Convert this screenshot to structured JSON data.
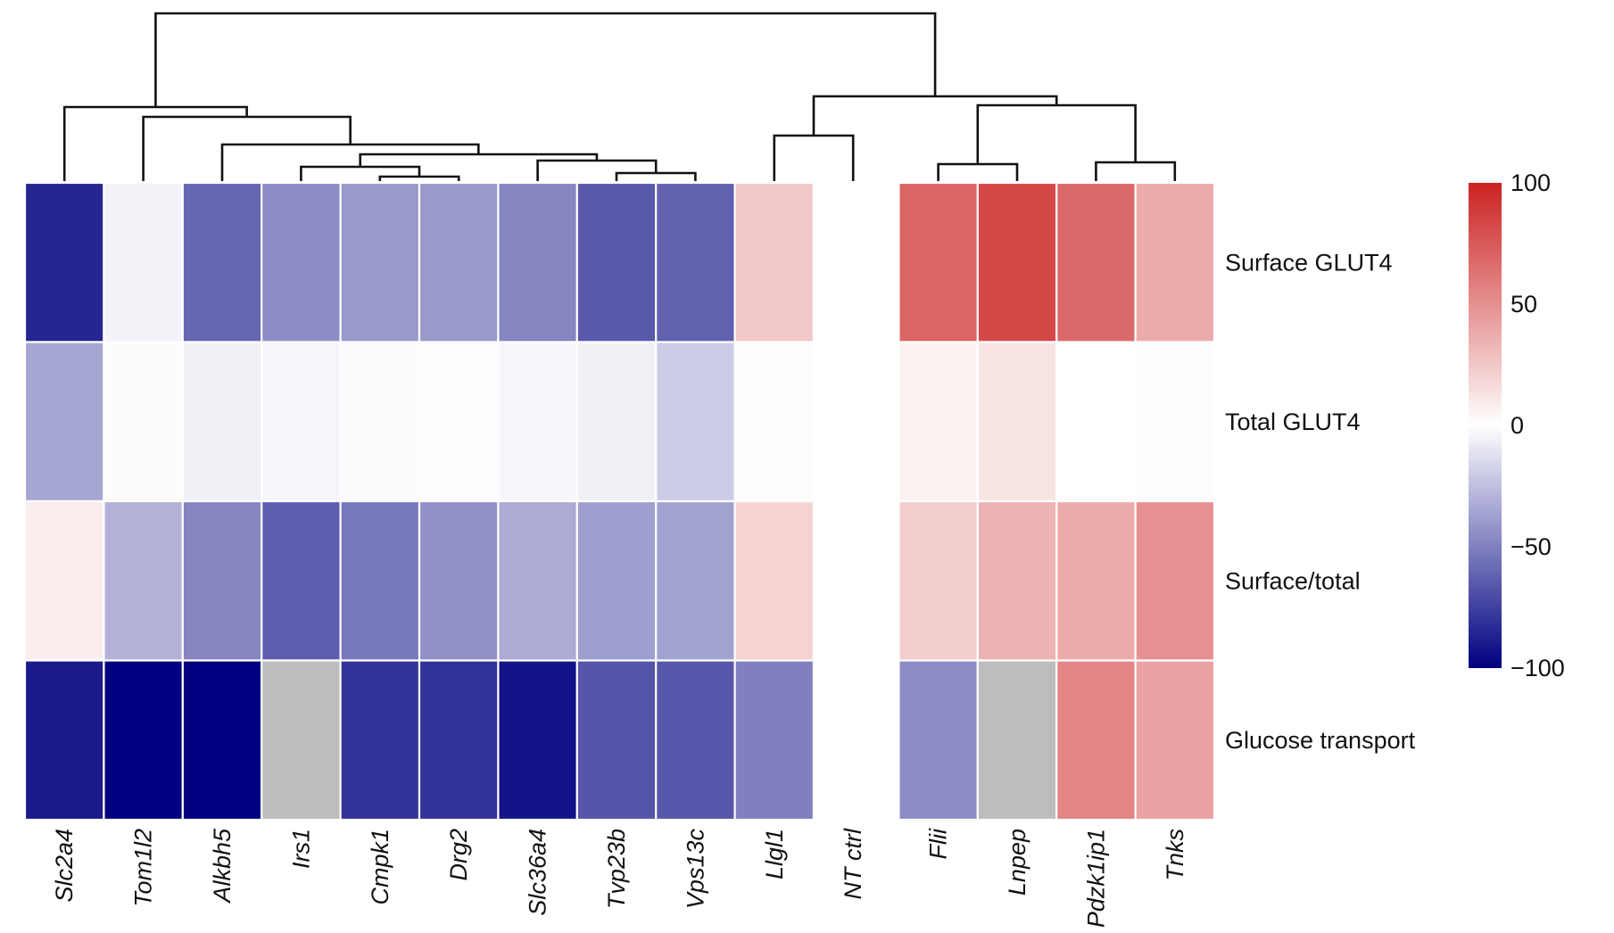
{
  "chart_data": {
    "type": "heatmap",
    "columns": [
      "Slc2a4",
      "Tom1l2",
      "Alkbh5",
      "Irs1",
      "Cmpk1",
      "Drg2",
      "Slc36a4",
      "Tvp23b",
      "Vps13c",
      "Llgl1",
      "NT ctrl",
      "Flii",
      "Lnpep",
      "Pdzk1ip1",
      "Tnks"
    ],
    "rows": [
      "Surface GLUT4",
      "Total GLUT4",
      "Surface/total",
      "Glucose transport"
    ],
    "values": [
      [
        -85,
        -5,
        -60,
        -45,
        -40,
        -40,
        -48,
        -65,
        -62,
        25,
        0,
        70,
        83,
        68,
        38
      ],
      [
        -35,
        2,
        -6,
        -4,
        -1,
        1,
        -3,
        -6,
        -20,
        1,
        0,
        6,
        12,
        0,
        1
      ],
      [
        8,
        -30,
        -48,
        -63,
        -53,
        -43,
        -33,
        -38,
        -36,
        20,
        0,
        22,
        35,
        38,
        50
      ],
      [
        -90,
        -100,
        -100,
        null,
        -80,
        -80,
        -92,
        -67,
        -66,
        -50,
        0,
        -45,
        null,
        55,
        42
      ]
    ],
    "missing_color": "#bdbdbd",
    "colorbar": {
      "min": -100,
      "max": 100,
      "ticks": [
        100,
        50,
        0,
        -50,
        -100
      ],
      "tick_labels": [
        "100",
        "50",
        "0",
        "−50",
        "−100"
      ],
      "colors": {
        "low": "#000080",
        "mid": "#ffffff",
        "high": "#cc2222"
      }
    },
    "gap_after_column": "NT ctrl",
    "column_dendrogram": {
      "merges": [
        [
          "Cmpk1",
          "Drg2"
        ],
        [
          "Irs1",
          "Cmpk1+Drg2"
        ],
        [
          "Tvp23b",
          "Vps13c"
        ],
        [
          "Slc36a4",
          "Tvp23b+Vps13c"
        ],
        [
          "Irs1+Cmpk1+Drg2",
          "Slc36a4+Tvp23b+Vps13c"
        ],
        [
          "Alkbh5",
          "Irs1..Vps13c"
        ],
        [
          "Tom1l2",
          "Alkbh5..Vps13c"
        ],
        [
          "Slc2a4",
          "Tom1l2..Vps13c"
        ],
        [
          "Llgl1",
          "NT ctrl"
        ],
        [
          "Flii",
          "Lnpep"
        ],
        [
          "Pdzk1ip1",
          "Tnks"
        ],
        [
          "Flii+Lnpep",
          "Pdzk1ip1+Tnks"
        ],
        [
          "Llgl1+NT ctrl",
          "Flii..Tnks"
        ],
        [
          "Slc2a4..Vps13c",
          "Llgl1..Tnks"
        ]
      ]
    }
  }
}
